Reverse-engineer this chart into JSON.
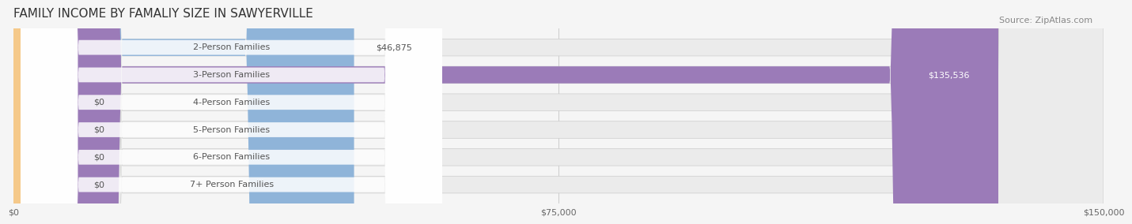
{
  "title": "FAMILY INCOME BY FAMALIY SIZE IN SAWYERVILLE",
  "source": "Source: ZipAtlas.com",
  "categories": [
    "2-Person Families",
    "3-Person Families",
    "4-Person Families",
    "5-Person Families",
    "6-Person Families",
    "7+ Person Families"
  ],
  "values": [
    46875,
    135536,
    0,
    0,
    0,
    0
  ],
  "value_labels": [
    "$46,875",
    "$135,536",
    "$0",
    "$0",
    "$0",
    "$0"
  ],
  "bar_colors": [
    "#8fb4d9",
    "#9b7bb8",
    "#5bbcb4",
    "#a89fd4",
    "#f08fa0",
    "#f5c98a"
  ],
  "bar_bg_color": "#ebebeb",
  "background_color": "#f5f5f5",
  "xlim": [
    0,
    150000
  ],
  "xtick_values": [
    0,
    75000,
    150000
  ],
  "xtick_labels": [
    "$0",
    "$75,000",
    "$150,000"
  ],
  "title_fontsize": 11,
  "source_fontsize": 8,
  "label_fontsize": 8,
  "value_fontsize": 8
}
